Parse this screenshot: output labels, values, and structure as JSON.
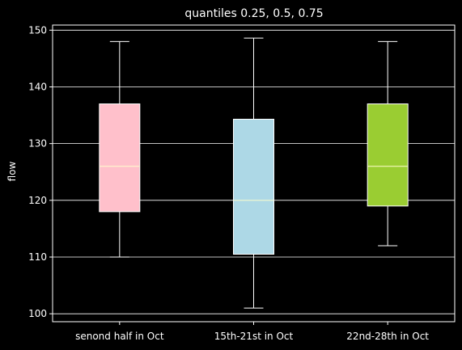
{
  "chart_data": {
    "type": "box",
    "title": "quantiles 0.25, 0.5, 0.75",
    "xlabel": "",
    "ylabel": "flow",
    "ylim": [
      98.6,
      150.9
    ],
    "yticks": [
      100,
      110,
      120,
      130,
      140,
      150
    ],
    "grid": "horizontal",
    "categories": [
      "senond half in Oct",
      "15th-21st in Oct",
      "22nd-28th in Oct"
    ],
    "boxes": [
      {
        "category": "senond half in Oct",
        "whisker_low": 110,
        "q1": 118,
        "median": 126,
        "q3": 137,
        "whisker_high": 148,
        "color": "#ffc0cb"
      },
      {
        "category": "15th-21st in Oct",
        "whisker_low": 101,
        "q1": 110.5,
        "median": 120,
        "q3": 134.3,
        "whisker_high": 148.6,
        "color": "#add8e6"
      },
      {
        "category": "22nd-28th in Oct",
        "whisker_low": 112,
        "q1": 119,
        "median": 126,
        "q3": 137,
        "whisker_high": 148,
        "color": "#9acd32"
      }
    ],
    "colors": {
      "background": "#000000",
      "axes": "#ffffff",
      "grid": "#ffffff",
      "median": "#ffffcc"
    }
  }
}
